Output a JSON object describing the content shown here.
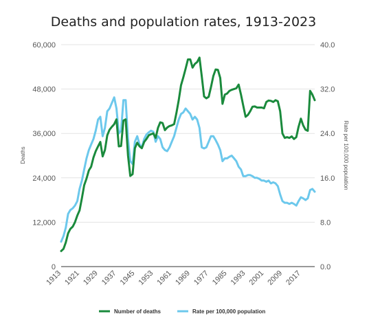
{
  "chart_data": {
    "type": "line",
    "title": "Deaths and population rates, 1913-2023",
    "xlabel": "",
    "ylabel": "Deaths",
    "y2label": "Rate per 100,000 population",
    "ylim": [
      0,
      60000
    ],
    "y2lim": [
      0,
      40
    ],
    "xlim": [
      1913,
      2023
    ],
    "x_tick_labels": [
      "1913",
      "1921",
      "1929",
      "1937",
      "1945",
      "1953",
      "1961",
      "1969",
      "1977",
      "1985",
      "1993",
      "2001",
      "2009",
      "2017"
    ],
    "y_tick_labels": [
      "0",
      "12,000",
      "24,000",
      "36,000",
      "48,000",
      "60,000"
    ],
    "y2_tick_labels": [
      "0.0",
      "8.0",
      "16.0",
      "24.0",
      "32.0",
      "40.0"
    ],
    "grid": true,
    "legend_position": "bottom",
    "series": [
      {
        "name": "Number of deaths",
        "axis": "left",
        "color": "#1a8a3c",
        "x": [
          1913,
          1914,
          1915,
          1916,
          1917,
          1918,
          1919,
          1920,
          1921,
          1922,
          1923,
          1924,
          1925,
          1926,
          1927,
          1928,
          1929,
          1930,
          1931,
          1932,
          1933,
          1934,
          1935,
          1936,
          1937,
          1938,
          1939,
          1940,
          1941,
          1942,
          1943,
          1944,
          1945,
          1946,
          1947,
          1948,
          1949,
          1950,
          1951,
          1952,
          1953,
          1954,
          1955,
          1956,
          1957,
          1958,
          1959,
          1960,
          1961,
          1962,
          1963,
          1964,
          1965,
          1966,
          1967,
          1968,
          1969,
          1970,
          1971,
          1972,
          1973,
          1974,
          1975,
          1976,
          1977,
          1978,
          1979,
          1980,
          1981,
          1982,
          1983,
          1984,
          1985,
          1986,
          1987,
          1988,
          1989,
          1990,
          1991,
          1992,
          1993,
          1994,
          1995,
          1996,
          1997,
          1998,
          1999,
          2000,
          2001,
          2002,
          2003,
          2004,
          2005,
          2006,
          2007,
          2008,
          2009,
          2010,
          2011,
          2012,
          2013,
          2014,
          2015,
          2016,
          2017,
          2018,
          2019,
          2020,
          2021,
          2022,
          2023
        ],
        "values": [
          4200,
          4800,
          6500,
          9000,
          10200,
          10800,
          12000,
          13800,
          15200,
          18500,
          22000,
          23800,
          26000,
          27000,
          29500,
          31200,
          32500,
          33700,
          29800,
          31500,
          35500,
          37000,
          37800,
          38500,
          39800,
          32500,
          32600,
          39500,
          39800,
          30000,
          24500,
          25000,
          32000,
          33500,
          32500,
          32000,
          33700,
          34500,
          35500,
          35800,
          36000,
          34800,
          37500,
          39000,
          38800,
          36900,
          37600,
          38000,
          38200,
          38500,
          41500,
          45000,
          49000,
          51200,
          53500,
          56000,
          56000,
          53800,
          54800,
          55300,
          56500,
          51500,
          46000,
          45500,
          45900,
          48500,
          51500,
          53300,
          53200,
          51000,
          44000,
          46500,
          46800,
          47500,
          47800,
          48000,
          48200,
          49200,
          46500,
          43500,
          40500,
          41000,
          42000,
          43200,
          43300,
          43000,
          43000,
          43000,
          42800,
          44500,
          44900,
          44800,
          44500,
          45000,
          44700,
          42000,
          36000,
          34800,
          35000,
          34800,
          35200,
          34500,
          35000,
          37800,
          40000,
          38200,
          37000,
          36700,
          47500,
          46500,
          45000
        ]
      },
      {
        "name": "Rate per 100,000 population",
        "axis": "right",
        "color": "#6cc8ec",
        "x": [
          1913,
          1914,
          1915,
          1916,
          1917,
          1918,
          1919,
          1920,
          1921,
          1922,
          1923,
          1924,
          1925,
          1926,
          1927,
          1928,
          1929,
          1930,
          1931,
          1932,
          1933,
          1934,
          1935,
          1936,
          1937,
          1938,
          1939,
          1940,
          1941,
          1942,
          1943,
          1944,
          1945,
          1946,
          1947,
          1948,
          1949,
          1950,
          1951,
          1952,
          1953,
          1954,
          1955,
          1956,
          1957,
          1958,
          1959,
          1960,
          1961,
          1962,
          1963,
          1964,
          1965,
          1966,
          1967,
          1968,
          1969,
          1970,
          1971,
          1972,
          1973,
          1974,
          1975,
          1976,
          1977,
          1978,
          1979,
          1980,
          1981,
          1982,
          1983,
          1984,
          1985,
          1986,
          1987,
          1988,
          1989,
          1990,
          1991,
          1992,
          1993,
          1994,
          1995,
          1996,
          1997,
          1998,
          1999,
          2000,
          2001,
          2002,
          2003,
          2004,
          2005,
          2006,
          2007,
          2008,
          2009,
          2010,
          2011,
          2012,
          2013,
          2014,
          2015,
          2016,
          2017,
          2018,
          2019,
          2020,
          2021,
          2022,
          2023
        ],
        "values": [
          4.5,
          5.5,
          7.0,
          9.5,
          10.2,
          10.5,
          11.0,
          11.8,
          14.0,
          15.5,
          17.5,
          19.5,
          21.0,
          22.0,
          23.0,
          24.5,
          26.5,
          27.0,
          23.5,
          25.0,
          28.0,
          28.5,
          29.5,
          30.5,
          28.5,
          24.0,
          24.5,
          30.0,
          30.0,
          23.0,
          19.0,
          18.5,
          22.5,
          23.5,
          22.0,
          21.5,
          23.0,
          23.8,
          24.2,
          24.5,
          24.3,
          22.5,
          23.5,
          23.0,
          21.5,
          21.0,
          20.8,
          21.5,
          22.5,
          23.5,
          25.0,
          26.5,
          27.5,
          27.8,
          28.5,
          28.0,
          27.5,
          26.5,
          27.0,
          26.5,
          25.0,
          21.5,
          21.3,
          21.5,
          22.5,
          23.5,
          23.5,
          22.8,
          22.0,
          21.0,
          19.0,
          19.5,
          19.5,
          19.8,
          20.0,
          19.5,
          19.0,
          18.0,
          17.5,
          16.3,
          16.3,
          16.5,
          16.5,
          16.3,
          16.0,
          16.0,
          15.8,
          15.5,
          15.5,
          15.3,
          15.5,
          15.0,
          15.2,
          15.0,
          14.5,
          13.0,
          11.8,
          11.5,
          11.5,
          11.3,
          11.5,
          11.3,
          11.0,
          11.8,
          12.5,
          12.3,
          12.0,
          12.3,
          13.8,
          14.0,
          13.5
        ]
      }
    ]
  }
}
